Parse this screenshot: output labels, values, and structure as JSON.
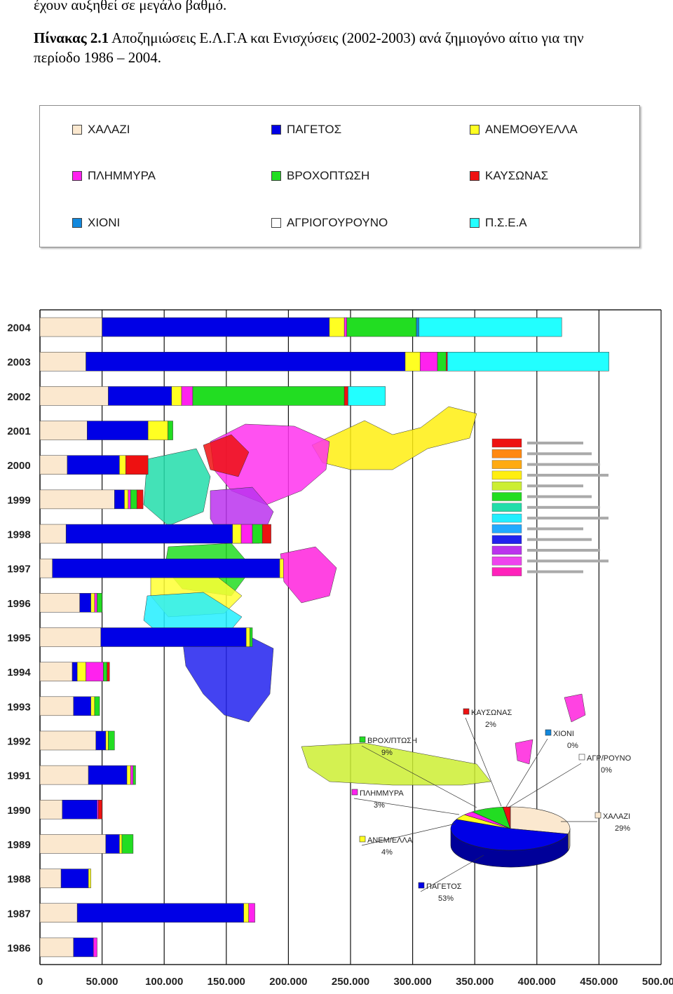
{
  "document": {
    "line1": "έχουν αυξηθεί σε μεγάλο βαθμό.",
    "caption_bold": "Πίνακας 2.1",
    "caption_rest": " Αποζημιώσεις Ε.Λ.Γ.Α και Ενισχύσεις (2002-2003) ανά ζημιογόνο αίτιο για την",
    "caption_line2": "περίοδο 1986 – 2004."
  },
  "colors": {
    "ΧΑΛΑΖΙ": "#fbe8cf",
    "ΠΑΓΕΤΟΣ": "#0000e6",
    "ΑΝΕΜΟΘΥΕΛΛΑ": "#ffff22",
    "ΠΛΗΜΜΥΡΑ": "#ff22ee",
    "ΒΡΟΧΟΠΤΩΣΗ": "#22dd22",
    "ΚΑΥΣΩΝΑΣ": "#ee1111",
    "ΧΙΟΝΙ": "#1188dd",
    "ΑΓΡΙΟΓΟΥΡΟΥΝΟ": "#ffffff",
    "Π.Σ.Ε.Α": "#22ffff"
  },
  "legend": [
    {
      "label": "ΧΑΛΑΖΙ",
      "icon": "swatch-square"
    },
    {
      "label": "ΠΑΓΕΤΟΣ",
      "icon": "swatch-square"
    },
    {
      "label": "ΑΝΕΜΟΘΥΕΛΛΑ",
      "icon": "swatch-square"
    },
    {
      "label": "ΠΛΗΜΜΥΡΑ",
      "icon": "swatch-square"
    },
    {
      "label": "ΒΡΟΧΟΠΤΩΣΗ",
      "icon": "swatch-square"
    },
    {
      "label": "ΚΑΥΣΩΝΑΣ",
      "icon": "swatch-square"
    },
    {
      "label": "ΧΙΟΝΙ",
      "icon": "swatch-square"
    },
    {
      "label": "ΑΓΡΙΟΓΟΥΡΟΥΝΟ",
      "icon": "swatch-square"
    },
    {
      "label": "Π.Σ.Ε.Α",
      "icon": "swatch-square"
    }
  ],
  "chart_data": [
    {
      "type": "bar",
      "orientation": "horizontal",
      "stacked": true,
      "categories": [
        "2004",
        "2003",
        "2002",
        "2001",
        "2000",
        "1999",
        "1998",
        "1997",
        "1996",
        "1995",
        "1994",
        "1993",
        "1992",
        "1991",
        "1990",
        "1989",
        "1988",
        "1987",
        "1986"
      ],
      "xlim": [
        0,
        500000
      ],
      "xticks": [
        "0",
        "50.000",
        "100.000",
        "150.000",
        "200.000",
        "250.000",
        "300.000",
        "350.000",
        "400.000",
        "450.000",
        "500.000"
      ],
      "grid": "vertical",
      "series": [
        {
          "name": "ΧΑΛΑΖΙ",
          "values": [
            50000,
            37000,
            55000,
            38000,
            22000,
            60000,
            21000,
            10000,
            32000,
            49000,
            26000,
            27000,
            45000,
            39000,
            18000,
            53000,
            17000,
            30000,
            27000
          ]
        },
        {
          "name": "ΠΑΓΕΤΟΣ",
          "values": [
            183000,
            257000,
            51000,
            49000,
            42000,
            8000,
            134000,
            183000,
            9000,
            117000,
            4000,
            14000,
            8000,
            31000,
            28000,
            11000,
            22000,
            134000,
            16000
          ]
        },
        {
          "name": "ΑΝΕΜΟΘΥΕΛΛΑ",
          "values": [
            12000,
            12000,
            8000,
            16000,
            5000,
            3000,
            7000,
            3000,
            3000,
            3000,
            7000,
            3000,
            2000,
            3000,
            0,
            2000,
            2000,
            4000,
            0
          ]
        },
        {
          "name": "ΠΛΗΜΜΥΡΑ",
          "values": [
            2000,
            14000,
            9000,
            0,
            0,
            2000,
            9000,
            0,
            2000,
            0,
            14000,
            0,
            0,
            2000,
            1000,
            0,
            0,
            5000,
            3000
          ]
        },
        {
          "name": "ΒΡΟΧΟΠΤΩΣΗ",
          "values": [
            56000,
            7000,
            122000,
            4000,
            0,
            5000,
            8000,
            0,
            4000,
            2000,
            3000,
            4000,
            5000,
            2000,
            0,
            9000,
            0,
            0,
            0
          ]
        },
        {
          "name": "ΚΑΥΣΩΝΑΣ",
          "values": [
            0,
            1000,
            3000,
            0,
            18000,
            5000,
            7000,
            0,
            0,
            0,
            2000,
            0,
            0,
            0,
            3000,
            0,
            0,
            0,
            0
          ]
        },
        {
          "name": "ΧΙΟΝΙ",
          "values": [
            2000,
            0,
            0,
            0,
            0,
            0,
            0,
            0,
            0,
            0,
            0,
            0,
            0,
            0,
            0,
            0,
            0,
            0,
            0
          ]
        },
        {
          "name": "ΑΓΡΙΟΓΟΥΡΟΥΝΟ",
          "values": [
            0,
            0,
            0,
            0,
            0,
            0,
            0,
            0,
            0,
            0,
            0,
            0,
            0,
            0,
            0,
            0,
            0,
            0,
            0
          ]
        },
        {
          "name": "Π.Σ.Ε.Α",
          "values": [
            115000,
            130000,
            30000,
            0,
            0,
            0,
            0,
            0,
            0,
            0,
            0,
            0,
            0,
            0,
            0,
            0,
            0,
            0,
            0
          ]
        }
      ]
    },
    {
      "type": "pie",
      "style": "3d",
      "slices": [
        {
          "label": "ΧΑΛΑΖΙ",
          "percent_label": "29%",
          "value": 29
        },
        {
          "label": "ΠΑΓΕΤΟΣ",
          "percent_label": "53%",
          "value": 53
        },
        {
          "label": "ΑΝΕΜ/ΕΛΛΑ",
          "percent_label": "4%",
          "value": 4
        },
        {
          "label": "ΠΛΗΜΜΥΡΑ",
          "percent_label": "3%",
          "value": 3
        },
        {
          "label": "ΒΡΟΧ/ΠΤΩΣΗ",
          "percent_label": "9%",
          "value": 9
        },
        {
          "label": "ΚΑΥΣΩΝΑΣ",
          "percent_label": "2%",
          "value": 2
        },
        {
          "label": "ΧΙΟΝΙ",
          "percent_label": "0%",
          "value": 0
        },
        {
          "label": "ΑΓΡ/ΡΟΥΝΟ",
          "percent_label": "0%",
          "value": 0
        }
      ]
    }
  ]
}
